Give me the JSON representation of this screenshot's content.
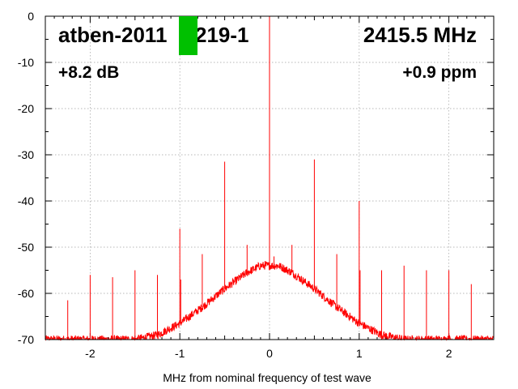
{
  "chart_data": {
    "type": "line",
    "title": "",
    "xlabel": "MHz from nominal frequency of test wave",
    "ylabel": "",
    "xlim": [
      -2.5,
      2.5
    ],
    "ylim": [
      -70,
      0
    ],
    "x_ticks": [
      -2,
      -1,
      0,
      1,
      2
    ],
    "y_ticks": [
      0,
      -10,
      -20,
      -30,
      -40,
      -50,
      -60,
      -70
    ],
    "x_tick_labels": [
      "-2",
      "-1",
      "0",
      "1",
      "2"
    ],
    "y_tick_labels": [
      "0",
      "-10",
      "-20",
      "-30",
      "-40",
      "-50",
      "-60",
      "-70"
    ],
    "grid": true,
    "line_color": "#ff0000",
    "annotations": {
      "device": "atben-2011",
      "device_tail": "219-1",
      "frequency": "2415.5 MHz",
      "gain": "+8.2 dB",
      "offset": "+0.9 ppm"
    },
    "noise_floor": {
      "x": [
        -2.0,
        -1.5,
        -1.25,
        -1.0,
        -0.75,
        -0.5,
        -0.25,
        -0.1,
        0.0,
        0.1,
        0.25,
        0.5,
        0.75,
        1.0,
        1.25,
        1.5,
        2.0
      ],
      "y": [
        -70,
        -70,
        -69,
        -66.5,
        -63,
        -59,
        -55.5,
        -54,
        -54,
        -54,
        -55.5,
        -59,
        -63,
        -66.5,
        -69,
        -70,
        -70
      ]
    },
    "spurs": {
      "x": [
        -2.25,
        -2.0,
        -1.75,
        -1.5,
        -1.25,
        -1.0,
        -0.99,
        -0.75,
        -0.5,
        -0.25,
        -0.05,
        0.0,
        0.05,
        0.25,
        0.5,
        0.75,
        1.0,
        1.01,
        1.25,
        1.5,
        1.75,
        2.0,
        2.25
      ],
      "y": [
        -61.5,
        -56,
        -56.5,
        -55,
        -56,
        -46,
        -57,
        -51.5,
        -31.5,
        -49.5,
        -53,
        0,
        -52,
        -49.5,
        -31,
        -51.5,
        -40,
        -55,
        -55,
        -54,
        -55,
        -55,
        -58
      ]
    },
    "marker": {
      "color": "#00c000"
    }
  }
}
